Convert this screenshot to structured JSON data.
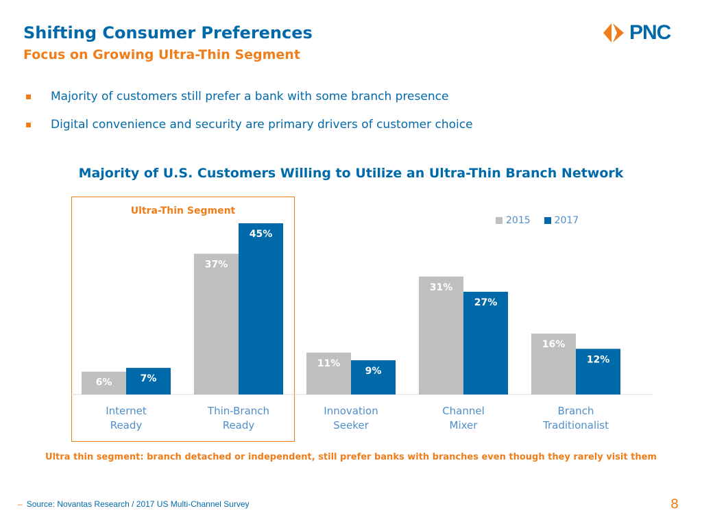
{
  "header": {
    "title": "Shifting Consumer Preferences",
    "subtitle": "Focus on Growing Ultra-Thin Segment",
    "logo_text": "PNC"
  },
  "bullets": [
    "Majority of customers still prefer a bank with some branch presence",
    "Digital convenience and security are primary drivers of customer choice"
  ],
  "chart_data": {
    "type": "bar",
    "title": "Majority of U.S. Customers Willing to Utilize an Ultra-Thin Branch Network",
    "categories": [
      [
        "Internet",
        "Ready"
      ],
      [
        "Thin-Branch",
        "Ready"
      ],
      [
        "Innovation",
        "Seeker"
      ],
      [
        "Channel",
        "Mixer"
      ],
      [
        "Branch",
        "Traditionalist"
      ]
    ],
    "series": [
      {
        "name": "2015",
        "values": [
          6,
          37,
          11,
          31,
          16
        ],
        "labels": [
          "6%",
          "37%",
          "11%",
          "31%",
          "16%"
        ],
        "color": "#bfbfbf",
        "label_color": "#ffffff"
      },
      {
        "name": "2017",
        "values": [
          7,
          45,
          9,
          27,
          12
        ],
        "labels": [
          "7%",
          "45%",
          "9%",
          "27%",
          "12%"
        ],
        "color": "#0069aa",
        "label_color": "#ffffff"
      }
    ],
    "ylim": [
      0,
      45
    ],
    "highlight": {
      "label": "Ultra-Thin Segment",
      "categories": [
        "Internet Ready",
        "Thin-Branch Ready"
      ]
    }
  },
  "footnote": "Ultra thin segment: branch detached or independent, still prefer banks with branches even though they rarely visit them",
  "source": "Source: Novantas Research / 2017 US Multi-Channel Survey",
  "page_number": "8",
  "colors": {
    "blue": "#0069aa",
    "orange": "#ef7d1a",
    "gray": "#bfbfbf"
  }
}
